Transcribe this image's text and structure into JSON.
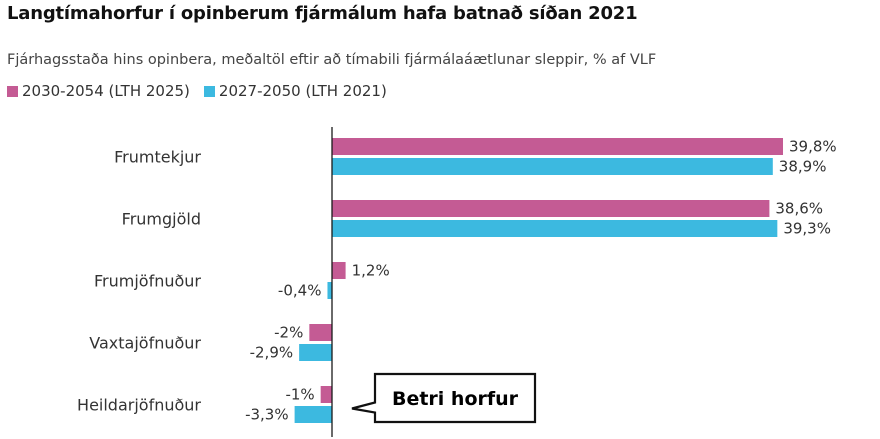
{
  "chart_data": {
    "type": "bar",
    "orientation": "horizontal",
    "title": "Langtímahorfur í opinberum fjármálum hafa batnað síðan 2021",
    "subtitle": "Fjárhagsstaða hins opinbera, meðaltöl eftir að tímabili fjármálaáætlunar sleppir, % af VLF",
    "categories": [
      "Frumtekjur",
      "Frumgjöld",
      "Frumjöfnuður",
      "Vaxtajöfnuður",
      "Heildarjöfnuður"
    ],
    "series": [
      {
        "name": "2030-2054 (LTH 2025)",
        "color": "#c45b94",
        "values": [
          39.8,
          38.6,
          1.2,
          -2,
          -1
        ],
        "labels": [
          "39,8%",
          "38,6%",
          "1,2%",
          "-2%",
          "-1%"
        ]
      },
      {
        "name": "2027-2050 (LTH 2021)",
        "color": "#3cb9e0",
        "values": [
          38.9,
          39.3,
          -0.4,
          -2.9,
          -3.3
        ],
        "labels": [
          "38,9%",
          "39,3%",
          "-0,4%",
          "-2,9%",
          "-3,3%"
        ]
      }
    ],
    "xlim": [
      -3.3,
      45
    ],
    "grid": false,
    "legend_position": "top-left",
    "annotation": {
      "text": "Betri horfur",
      "target_category": "Heildarjöfnuður"
    }
  }
}
